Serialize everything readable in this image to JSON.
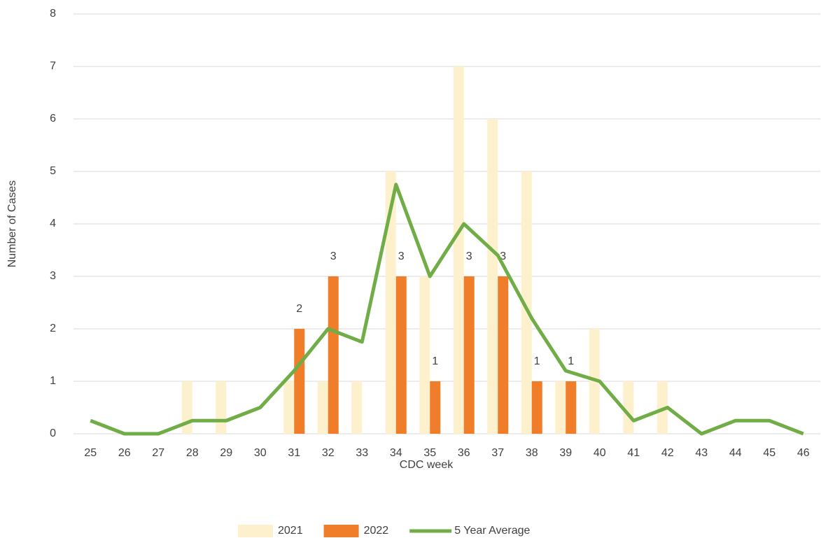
{
  "chart_data": {
    "type": "bar",
    "x_label": "CDC week",
    "y_label": "Number of Cases",
    "categories": [
      25,
      26,
      27,
      28,
      29,
      30,
      31,
      32,
      33,
      34,
      35,
      36,
      37,
      38,
      39,
      40,
      41,
      42,
      43,
      44,
      45,
      46
    ],
    "series": [
      {
        "name": "2021",
        "type": "bar",
        "color": "#fdf0cc",
        "values": [
          0,
          0,
          0,
          1,
          1,
          0,
          1,
          1,
          1,
          5,
          3,
          7,
          6,
          5,
          1,
          2,
          1,
          1,
          0,
          0,
          0,
          0
        ]
      },
      {
        "name": "2022",
        "type": "bar",
        "color": "#f07d2a",
        "data_labels": true,
        "values": [
          0,
          0,
          0,
          0,
          0,
          0,
          2,
          3,
          0,
          3,
          1,
          3,
          3,
          1,
          1,
          0,
          0,
          0,
          0,
          0,
          0,
          0
        ]
      },
      {
        "name": "5 Year Average",
        "type": "line",
        "color": "#70ad47",
        "values": [
          0.25,
          0,
          0,
          0.25,
          0.25,
          0.5,
          1.2,
          2,
          1.75,
          4.75,
          3,
          4,
          3.4,
          2.2,
          1.2,
          1,
          0.25,
          0.5,
          0,
          0.25,
          0.25,
          0
        ]
      }
    ],
    "ylim": [
      0,
      8
    ],
    "yticks": [
      0,
      1,
      2,
      3,
      4,
      5,
      6,
      7,
      8
    ],
    "grid": true,
    "legend": "bottom"
  }
}
